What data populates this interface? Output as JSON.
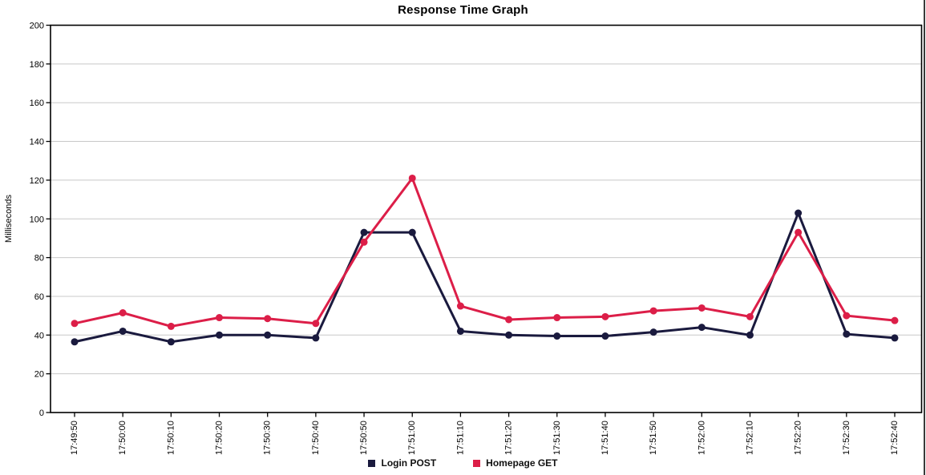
{
  "chart_data": {
    "type": "line",
    "title": "Response Time Graph",
    "xlabel": "",
    "ylabel": "Milliseconds",
    "ylim": [
      0,
      200
    ],
    "y_tick_step": 20,
    "grid": true,
    "legend_position": "bottom",
    "grid_color": "#c8c8c8",
    "axis_color": "#000000",
    "categories": [
      "17:49:50",
      "17:50:00",
      "17:50:10",
      "17:50:20",
      "17:50:30",
      "17:50:40",
      "17:50:50",
      "17:51:00",
      "17:51:10",
      "17:51:20",
      "17:51:30",
      "17:51:40",
      "17:51:50",
      "17:52:00",
      "17:52:10",
      "17:52:20",
      "17:52:30",
      "17:52:40"
    ],
    "series": [
      {
        "name": "Login POST",
        "color": "#1a1a3e",
        "values": [
          36.5,
          42,
          36.5,
          40,
          40,
          38.5,
          93,
          93,
          42,
          40,
          39.5,
          39.5,
          41.5,
          44,
          40,
          103,
          40.5,
          38.5
        ]
      },
      {
        "name": "Homepage GET",
        "color": "#dc1e48",
        "values": [
          46,
          51.5,
          44.5,
          49,
          48.5,
          46,
          88,
          121,
          55,
          48,
          49,
          49.5,
          52.5,
          54,
          49.5,
          93,
          50,
          47.5
        ]
      }
    ]
  }
}
